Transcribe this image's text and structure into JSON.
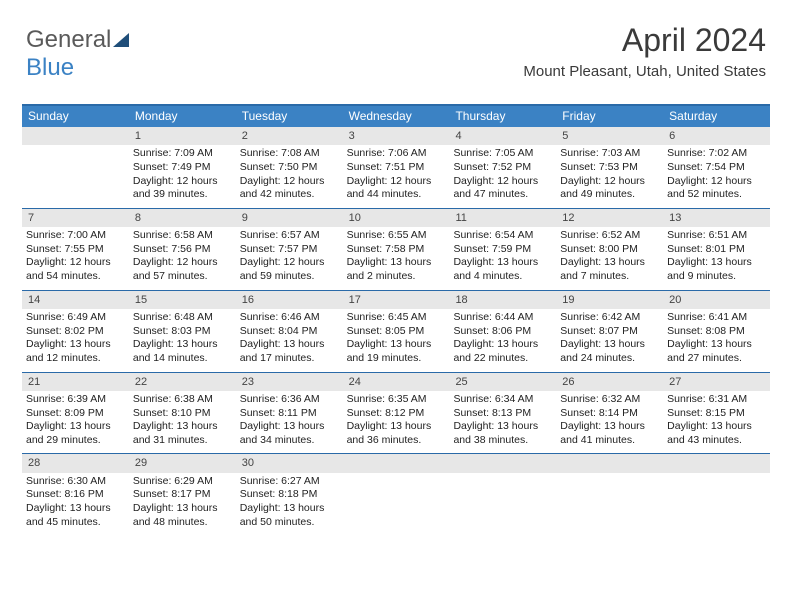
{
  "logo": {
    "part1": "General",
    "part2": "Blue"
  },
  "title": "April 2024",
  "location": "Mount Pleasant, Utah, United States",
  "dayNames": [
    "Sunday",
    "Monday",
    "Tuesday",
    "Wednesday",
    "Thursday",
    "Friday",
    "Saturday"
  ],
  "header_bg": "#3b82c4",
  "header_border": "#2a6aa8",
  "daynum_bg": "#e7e7e7",
  "weeks": [
    [
      {
        "n": "",
        "sr": "",
        "ss": "",
        "dl": ""
      },
      {
        "n": "1",
        "sr": "7:09 AM",
        "ss": "7:49 PM",
        "dl": "12 hours and 39 minutes."
      },
      {
        "n": "2",
        "sr": "7:08 AM",
        "ss": "7:50 PM",
        "dl": "12 hours and 42 minutes."
      },
      {
        "n": "3",
        "sr": "7:06 AM",
        "ss": "7:51 PM",
        "dl": "12 hours and 44 minutes."
      },
      {
        "n": "4",
        "sr": "7:05 AM",
        "ss": "7:52 PM",
        "dl": "12 hours and 47 minutes."
      },
      {
        "n": "5",
        "sr": "7:03 AM",
        "ss": "7:53 PM",
        "dl": "12 hours and 49 minutes."
      },
      {
        "n": "6",
        "sr": "7:02 AM",
        "ss": "7:54 PM",
        "dl": "12 hours and 52 minutes."
      }
    ],
    [
      {
        "n": "7",
        "sr": "7:00 AM",
        "ss": "7:55 PM",
        "dl": "12 hours and 54 minutes."
      },
      {
        "n": "8",
        "sr": "6:58 AM",
        "ss": "7:56 PM",
        "dl": "12 hours and 57 minutes."
      },
      {
        "n": "9",
        "sr": "6:57 AM",
        "ss": "7:57 PM",
        "dl": "12 hours and 59 minutes."
      },
      {
        "n": "10",
        "sr": "6:55 AM",
        "ss": "7:58 PM",
        "dl": "13 hours and 2 minutes."
      },
      {
        "n": "11",
        "sr": "6:54 AM",
        "ss": "7:59 PM",
        "dl": "13 hours and 4 minutes."
      },
      {
        "n": "12",
        "sr": "6:52 AM",
        "ss": "8:00 PM",
        "dl": "13 hours and 7 minutes."
      },
      {
        "n": "13",
        "sr": "6:51 AM",
        "ss": "8:01 PM",
        "dl": "13 hours and 9 minutes."
      }
    ],
    [
      {
        "n": "14",
        "sr": "6:49 AM",
        "ss": "8:02 PM",
        "dl": "13 hours and 12 minutes."
      },
      {
        "n": "15",
        "sr": "6:48 AM",
        "ss": "8:03 PM",
        "dl": "13 hours and 14 minutes."
      },
      {
        "n": "16",
        "sr": "6:46 AM",
        "ss": "8:04 PM",
        "dl": "13 hours and 17 minutes."
      },
      {
        "n": "17",
        "sr": "6:45 AM",
        "ss": "8:05 PM",
        "dl": "13 hours and 19 minutes."
      },
      {
        "n": "18",
        "sr": "6:44 AM",
        "ss": "8:06 PM",
        "dl": "13 hours and 22 minutes."
      },
      {
        "n": "19",
        "sr": "6:42 AM",
        "ss": "8:07 PM",
        "dl": "13 hours and 24 minutes."
      },
      {
        "n": "20",
        "sr": "6:41 AM",
        "ss": "8:08 PM",
        "dl": "13 hours and 27 minutes."
      }
    ],
    [
      {
        "n": "21",
        "sr": "6:39 AM",
        "ss": "8:09 PM",
        "dl": "13 hours and 29 minutes."
      },
      {
        "n": "22",
        "sr": "6:38 AM",
        "ss": "8:10 PM",
        "dl": "13 hours and 31 minutes."
      },
      {
        "n": "23",
        "sr": "6:36 AM",
        "ss": "8:11 PM",
        "dl": "13 hours and 34 minutes."
      },
      {
        "n": "24",
        "sr": "6:35 AM",
        "ss": "8:12 PM",
        "dl": "13 hours and 36 minutes."
      },
      {
        "n": "25",
        "sr": "6:34 AM",
        "ss": "8:13 PM",
        "dl": "13 hours and 38 minutes."
      },
      {
        "n": "26",
        "sr": "6:32 AM",
        "ss": "8:14 PM",
        "dl": "13 hours and 41 minutes."
      },
      {
        "n": "27",
        "sr": "6:31 AM",
        "ss": "8:15 PM",
        "dl": "13 hours and 43 minutes."
      }
    ],
    [
      {
        "n": "28",
        "sr": "6:30 AM",
        "ss": "8:16 PM",
        "dl": "13 hours and 45 minutes."
      },
      {
        "n": "29",
        "sr": "6:29 AM",
        "ss": "8:17 PM",
        "dl": "13 hours and 48 minutes."
      },
      {
        "n": "30",
        "sr": "6:27 AM",
        "ss": "8:18 PM",
        "dl": "13 hours and 50 minutes."
      },
      {
        "n": "",
        "sr": "",
        "ss": "",
        "dl": ""
      },
      {
        "n": "",
        "sr": "",
        "ss": "",
        "dl": ""
      },
      {
        "n": "",
        "sr": "",
        "ss": "",
        "dl": ""
      },
      {
        "n": "",
        "sr": "",
        "ss": "",
        "dl": ""
      }
    ]
  ],
  "labels": {
    "sunrise": "Sunrise:",
    "sunset": "Sunset:",
    "daylight": "Daylight:"
  }
}
